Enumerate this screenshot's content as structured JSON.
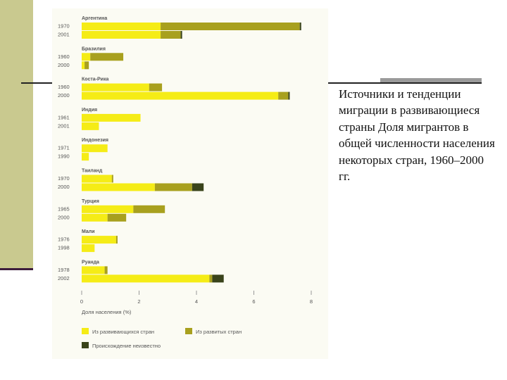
{
  "caption": "Источники и тенденции миграции в развивающиеся страны Доля мигрантов в общей численности населения некоторых стран, 1960–2000 гг.",
  "colors": {
    "developing": "#f5ec16",
    "developed": "#a8a01e",
    "unknown": "#39431a",
    "text": "#555555",
    "panel": "#fbfbf3"
  },
  "chart_data": {
    "type": "bar",
    "orientation": "horizontal",
    "stacked": true,
    "xlabel": "Доля населения (%)",
    "xlim": [
      0,
      8
    ],
    "xticks": [
      0,
      2,
      4,
      6,
      8
    ],
    "grid": false,
    "legend": {
      "placement": "bottom-left"
    },
    "series": [
      {
        "name": "Из развивающихся стран",
        "color": "#f5ec16"
      },
      {
        "name": "Из развитых стран",
        "color": "#a8a01e"
      },
      {
        "name": "Происхождение неизвестно",
        "color": "#39431a"
      }
    ],
    "groups": [
      {
        "country": "Аргентина",
        "rows": [
          {
            "year": "1970",
            "values": [
              2.75,
              4.85,
              0.05
            ]
          },
          {
            "year": "2001",
            "values": [
              2.75,
              0.7,
              0.05
            ]
          }
        ]
      },
      {
        "country": "Бразилия",
        "rows": [
          {
            "year": "1960",
            "values": [
              0.3,
              1.15,
              0
            ]
          },
          {
            "year": "2000",
            "values": [
              0.1,
              0.15,
              0
            ]
          }
        ]
      },
      {
        "country": "Коста-Рика",
        "rows": [
          {
            "year": "1960",
            "values": [
              2.35,
              0.45,
              0
            ]
          },
          {
            "year": "2000",
            "values": [
              6.85,
              0.35,
              0.05
            ]
          }
        ]
      },
      {
        "country": "Индия",
        "rows": [
          {
            "year": "1961",
            "values": [
              2.05,
              0,
              0
            ]
          },
          {
            "year": "2001",
            "values": [
              0.6,
              0,
              0
            ]
          }
        ]
      },
      {
        "country": "Индонезия",
        "rows": [
          {
            "year": "1971",
            "values": [
              0.9,
              0,
              0
            ]
          },
          {
            "year": "1990",
            "values": [
              0.25,
              0,
              0
            ]
          }
        ]
      },
      {
        "country": "Таиланд",
        "rows": [
          {
            "year": "1970",
            "values": [
              1.05,
              0.05,
              0
            ]
          },
          {
            "year": "2000",
            "values": [
              2.55,
              1.3,
              0.4
            ]
          }
        ]
      },
      {
        "country": "Турция",
        "rows": [
          {
            "year": "1965",
            "values": [
              1.8,
              1.1,
              0
            ]
          },
          {
            "year": "2000",
            "values": [
              0.9,
              0.65,
              0
            ]
          }
        ]
      },
      {
        "country": "Мали",
        "rows": [
          {
            "year": "1976",
            "values": [
              1.2,
              0.05,
              0
            ]
          },
          {
            "year": "1998",
            "values": [
              0.45,
              0,
              0
            ]
          }
        ]
      },
      {
        "country": "Руанда",
        "rows": [
          {
            "year": "1978",
            "values": [
              0.8,
              0.1,
              0
            ]
          },
          {
            "year": "2002",
            "values": [
              4.45,
              0.1,
              0.4
            ]
          }
        ]
      }
    ]
  }
}
